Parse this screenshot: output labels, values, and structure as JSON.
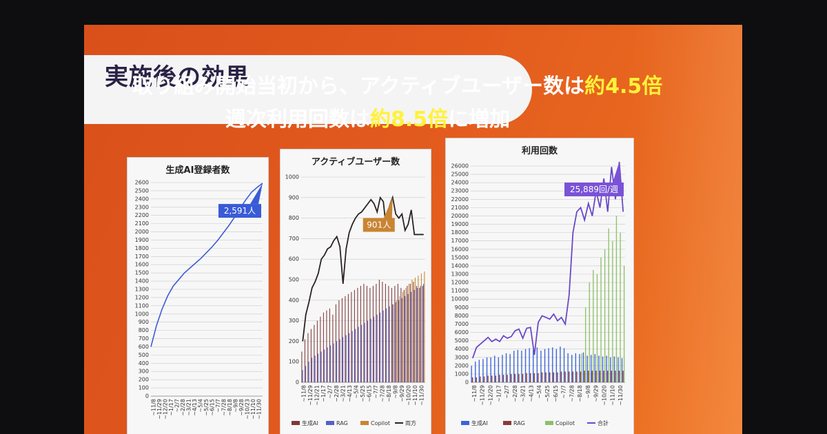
{
  "slide": {
    "title": "実施後の効果",
    "line1_pre": "取り組み開始当初から、アクティブユーザー数は",
    "line1_highlight": "約4.5倍",
    "line2_pre": "週次利用回数は",
    "line2_highlight": "約8.5倍",
    "line2_post": "に増加",
    "colors": {
      "background": "#e25a1e",
      "highlight": "#fff23a",
      "title_text": "#2a2245"
    }
  },
  "chart_data": [
    {
      "type": "line",
      "title": "生成AI登録者数",
      "y_ticks": [
        0,
        100,
        200,
        300,
        400,
        500,
        600,
        700,
        800,
        900,
        1000,
        1100,
        1200,
        1300,
        1400,
        1500,
        1600,
        1700,
        1800,
        1900,
        2000,
        2100,
        2200,
        2300,
        2400,
        2500,
        2600
      ],
      "ylim": [
        0,
        2600
      ],
      "x_ticks": [
        "~11/8",
        "~11/29",
        "~12/20",
        "~1/17",
        "~2/7",
        "~2/28",
        "~3/21",
        "~4/13",
        "~5/4",
        "~5/25",
        "~6/15",
        "~7/7",
        "~7/28",
        "~8/18",
        "~9/8",
        "~9/28",
        "~10/23",
        "~11/10",
        "~11/30"
      ],
      "series": [
        {
          "color": "#3a5bd6",
          "values": [
            600,
            860,
            1060,
            1220,
            1340,
            1420,
            1500,
            1560,
            1620,
            1680,
            1750,
            1820,
            1900,
            1990,
            2080,
            2180,
            2290,
            2390,
            2480,
            2540,
            2591
          ]
        }
      ],
      "callout": {
        "text": "2,591人",
        "color": "#3a5bd6"
      },
      "grid": true
    },
    {
      "type": "bar",
      "title": "アクティブユーザー数",
      "y_ticks": [
        0,
        100,
        200,
        300,
        400,
        500,
        600,
        700,
        800,
        900,
        1000
      ],
      "ylim": [
        0,
        1000
      ],
      "x_ticks": [
        "~11/8",
        "~11/29",
        "~12/21",
        "~1/17",
        "~2/7",
        "~2/28",
        "~3/21",
        "~4/13",
        "~5/4",
        "~5/25",
        "~6/15",
        "~7/7",
        "~7/28",
        "~8/18",
        "~9/8",
        "~9/29",
        "~10/20",
        "~11/10",
        "~11/30"
      ],
      "series": [
        {
          "name": "生成AI",
          "color": "#7b3a3a",
          "values": [
            150,
            210,
            240,
            260,
            280,
            300,
            320,
            340,
            350,
            360,
            330,
            380,
            400,
            410,
            420,
            430,
            440,
            450,
            460,
            470,
            480,
            470,
            460,
            470,
            480,
            500,
            490,
            480,
            470,
            460,
            470,
            480,
            460,
            450,
            470,
            480,
            490,
            470,
            460,
            470
          ]
        },
        {
          "name": "RAG",
          "color": "#5660c8",
          "values": [
            60,
            80,
            100,
            120,
            130,
            140,
            150,
            160,
            170,
            180,
            190,
            200,
            210,
            220,
            230,
            240,
            250,
            260,
            270,
            280,
            290,
            300,
            310,
            320,
            330,
            340,
            350,
            360,
            370,
            380,
            390,
            400,
            410,
            420,
            430,
            440,
            450,
            460,
            470,
            480
          ]
        },
        {
          "name": "Copilot",
          "color": "#c98433",
          "values": [
            0,
            0,
            0,
            0,
            0,
            0,
            0,
            0,
            0,
            0,
            0,
            0,
            0,
            0,
            0,
            0,
            0,
            0,
            0,
            0,
            0,
            0,
            0,
            0,
            0,
            0,
            0,
            0,
            0,
            380,
            400,
            420,
            440,
            460,
            480,
            500,
            510,
            520,
            530,
            540
          ]
        },
        {
          "name": "両方",
          "color": "#2b2222",
          "values": [
            200,
            330,
            390,
            460,
            490,
            530,
            600,
            620,
            650,
            660,
            690,
            710,
            660,
            480,
            650,
            730,
            770,
            800,
            820,
            830,
            850,
            870,
            890,
            870,
            830,
            900,
            880,
            740,
            860,
            901,
            820,
            800,
            820,
            740,
            770,
            840,
            720,
            720,
            720,
            720
          ]
        }
      ],
      "callout": {
        "text": "901人",
        "color": "#c98433"
      },
      "grid": true
    },
    {
      "type": "bar",
      "title": "利用回数",
      "y_ticks": [
        0,
        1000,
        2000,
        3000,
        4000,
        5000,
        6000,
        7000,
        8000,
        9000,
        10000,
        11000,
        12000,
        13000,
        14000,
        15000,
        16000,
        17000,
        18000,
        19000,
        20000,
        21000,
        22000,
        23000,
        24000,
        25000,
        26000
      ],
      "ylim": [
        0,
        26000
      ],
      "x_ticks": [
        "~11/8",
        "~11/29",
        "~12/20",
        "~1/17",
        "~2/7",
        "~2/28",
        "~3/21",
        "~4/13",
        "~5/4",
        "~5/25",
        "~6/15",
        "~7/7",
        "~7/28",
        "~8/18",
        "~9/8",
        "~9/29",
        "~10/20",
        "~11/10",
        "~11/30"
      ],
      "series": [
        {
          "name": "生成AI",
          "color": "#3a64d8",
          "values": [
            2000,
            2500,
            2700,
            2800,
            3000,
            3000,
            3200,
            3000,
            3300,
            3500,
            3400,
            3800,
            3900,
            3800,
            4000,
            4100,
            3900,
            4200,
            3800,
            4000,
            4100,
            4200,
            4000,
            4300,
            4100,
            3500,
            3300,
            3500,
            3400,
            3600,
            3200,
            3300,
            3400,
            3200,
            3100,
            3200,
            3000,
            3100,
            3000,
            2900
          ]
        },
        {
          "name": "RAG",
          "color": "#8a3a3a",
          "values": [
            600,
            600,
            700,
            700,
            800,
            800,
            800,
            900,
            900,
            900,
            1000,
            1000,
            1000,
            1000,
            1100,
            1100,
            1100,
            1100,
            1200,
            1200,
            1200,
            1200,
            1200,
            1300,
            1300,
            1300,
            1300,
            1300,
            1300,
            1400,
            1400,
            1400,
            1400,
            1400,
            1400,
            1400,
            1400,
            1400,
            1400,
            1400
          ]
        },
        {
          "name": "Copilot",
          "color": "#8fc06a",
          "values": [
            0,
            0,
            0,
            0,
            0,
            0,
            0,
            0,
            0,
            0,
            0,
            0,
            0,
            0,
            0,
            0,
            0,
            0,
            0,
            0,
            0,
            0,
            0,
            0,
            0,
            0,
            0,
            0,
            3500,
            9000,
            12000,
            13500,
            13000,
            15000,
            16000,
            18500,
            17000,
            20000,
            18000,
            14000
          ]
        },
        {
          "name": "合計",
          "color": "#6a48c8",
          "values": [
            2900,
            4200,
            4600,
            5000,
            5400,
            4900,
            5200,
            4900,
            5600,
            5300,
            5500,
            6200,
            6400,
            5300,
            6500,
            6600,
            3300,
            7200,
            8000,
            7800,
            7600,
            8200,
            7400,
            7800,
            7000,
            10500,
            18000,
            20500,
            21000,
            19500,
            21500,
            20000,
            23000,
            21000,
            24500,
            20500,
            25889,
            22000,
            26500,
            20500
          ]
        }
      ],
      "callout": {
        "text": "25,889回/週",
        "color": "#7a52d6"
      },
      "grid": true
    }
  ]
}
